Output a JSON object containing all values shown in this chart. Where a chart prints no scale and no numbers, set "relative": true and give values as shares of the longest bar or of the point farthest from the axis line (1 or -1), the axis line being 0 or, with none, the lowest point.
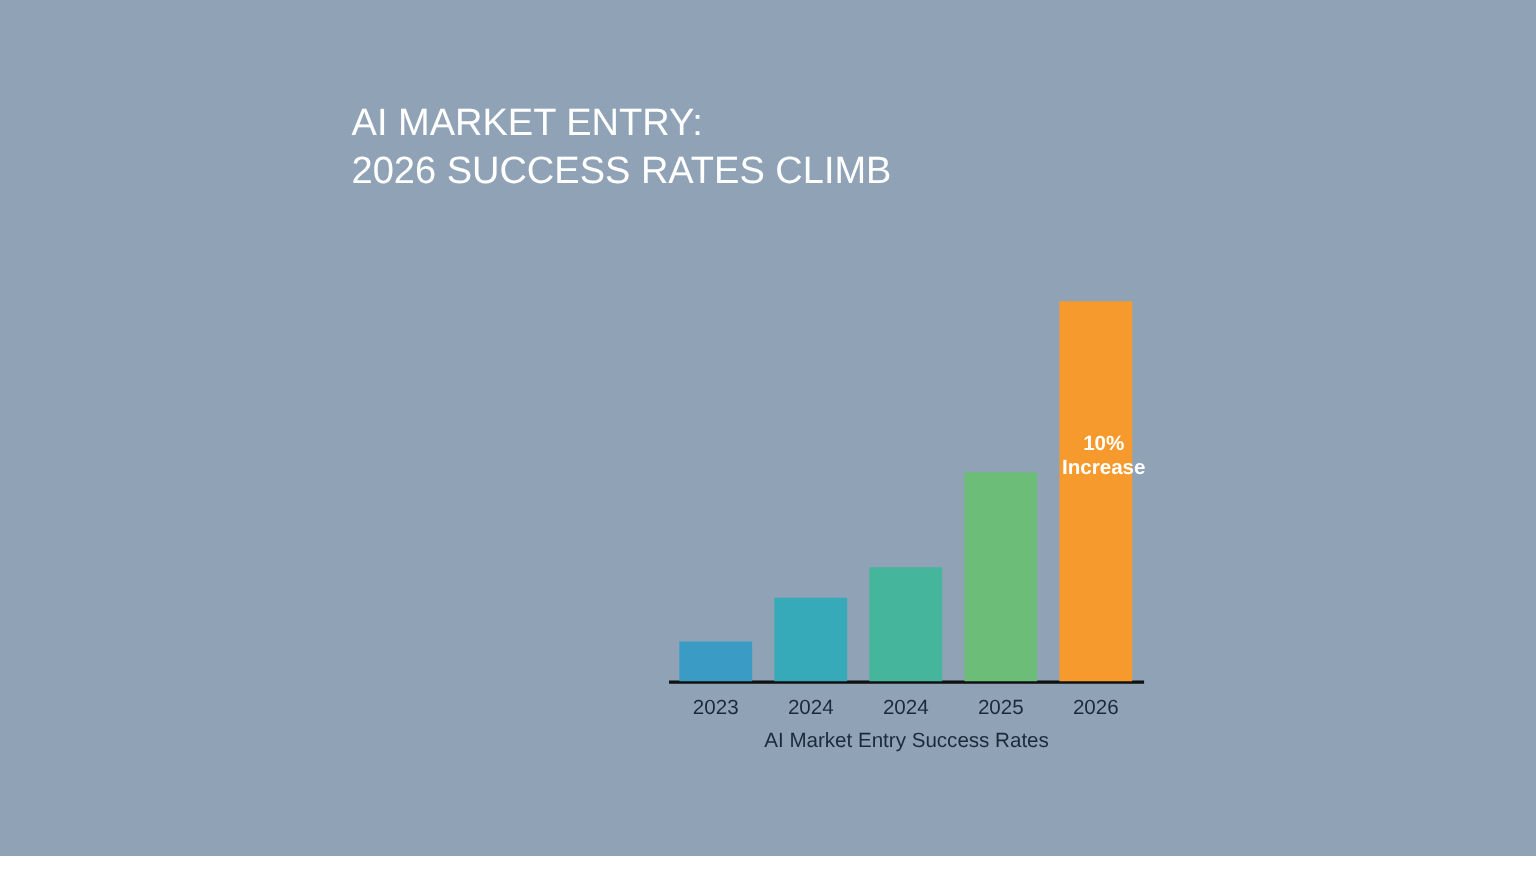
{
  "chart_data": {
    "type": "bar",
    "title": "AI MARKET ENTRY:\n2026 SUCCESS RATES CLIMB",
    "xlabel": "AI Market Entry Success Rates",
    "categories": [
      "2023",
      "2024",
      "2024",
      "2025",
      "2026"
    ],
    "values": [
      0.105,
      0.22,
      0.3,
      0.55,
      1
    ],
    "colors": [
      "#3a9cc4",
      "#36aab8",
      "#45b59c",
      "#6bbd78",
      "#f79a2e"
    ],
    "relative": true,
    "grid": false,
    "legend": false,
    "annotations": [
      "10%\nIncrease"
    ]
  }
}
